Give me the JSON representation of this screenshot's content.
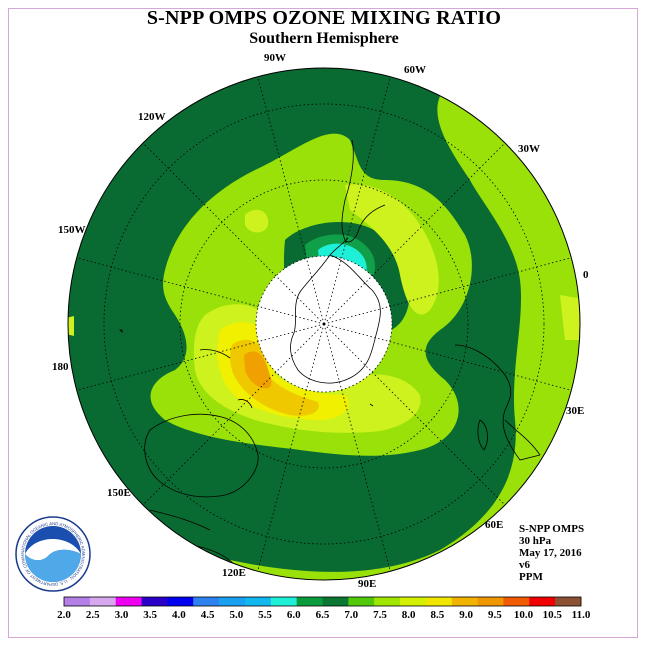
{
  "title": "S-NPP OMPS OZONE MIXING RATIO",
  "subtitle": "Southern Hemisphere",
  "longitude_labels": [
    "90W",
    "60W",
    "30W",
    "0",
    "30E",
    "60E",
    "90E",
    "120E",
    "150E",
    "180",
    "150W",
    "120W"
  ],
  "info": {
    "instrument": "S-NPP OMPS",
    "pressure": "30 hPa",
    "date": "May 17, 2016",
    "version": "v6",
    "units": "PPM"
  },
  "logo": {
    "text": "NOAA",
    "ring_text": "NATIONAL OCEANIC AND ATMOSPHERIC ADMINISTRATION · U.S. DEPARTMENT OF COMMERCE"
  },
  "colorbar": {
    "tick_labels": [
      "2.0",
      "2.5",
      "3.0",
      "3.5",
      "4.0",
      "4.5",
      "5.0",
      "5.5",
      "6.0",
      "6.5",
      "7.0",
      "7.5",
      "8.0",
      "8.5",
      "9.0",
      "9.5",
      "10.0",
      "10.5",
      "11.0"
    ],
    "colors": [
      "#b57fe8",
      "#d7a7f0",
      "#f000f0",
      "#2a00c8",
      "#0000f0",
      "#2d82f0",
      "#19a0f0",
      "#11b8f0",
      "#1ef0d8",
      "#0a9c3c",
      "#0a7832",
      "#52c80a",
      "#a0e600",
      "#d2f000",
      "#f0e600",
      "#f0b400",
      "#f09600",
      "#f05a00",
      "#f00000",
      "#8c5032"
    ]
  },
  "legend_colors": {
    "ppm_6_5_to_7": "#0a6b32",
    "ppm_7_to_7_5": "#9ae10a",
    "ppm_7_5_to_8": "#cdf21e",
    "ppm_8_to_8_5": "#f0f000",
    "ppm_8_5_to_9": "#f0c800",
    "ppm_9_to_9_5": "#f0a000",
    "ppm_6_to_6_5": "#11a04a",
    "ppm_5_5_to_6": "#1ef0d8",
    "no_data": "#ffffff"
  }
}
